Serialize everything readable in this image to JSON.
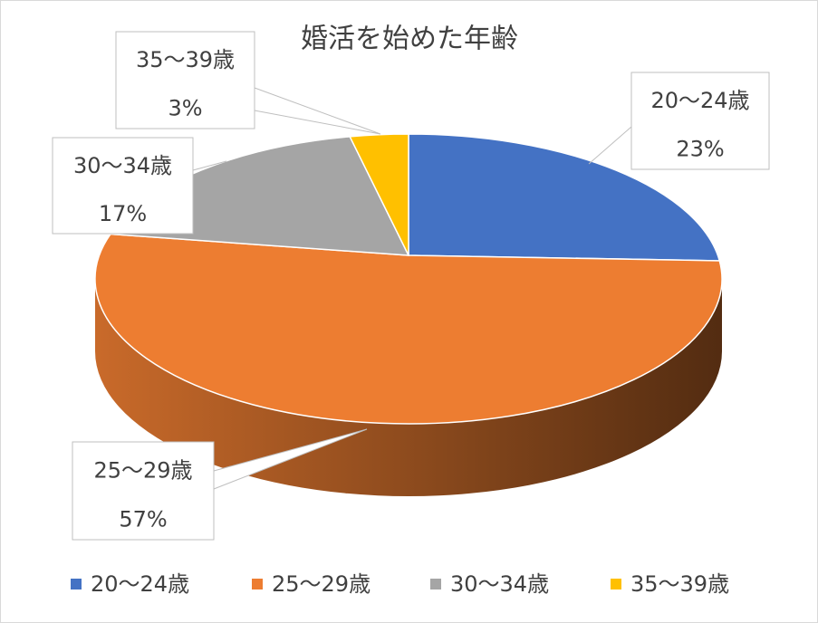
{
  "chart_data": {
    "type": "pie",
    "title": "婚活を始めた年齢",
    "categories": [
      "20～24歳",
      "25～29歳",
      "30～34歳",
      "35～39歳"
    ],
    "values": [
      23,
      57,
      17,
      3
    ],
    "value_labels": [
      "23%",
      "57%",
      "17%",
      "3%"
    ],
    "colors": [
      "#4472c4",
      "#ed7d31",
      "#a5a5a5",
      "#ffc000"
    ],
    "legend": "bottom"
  }
}
